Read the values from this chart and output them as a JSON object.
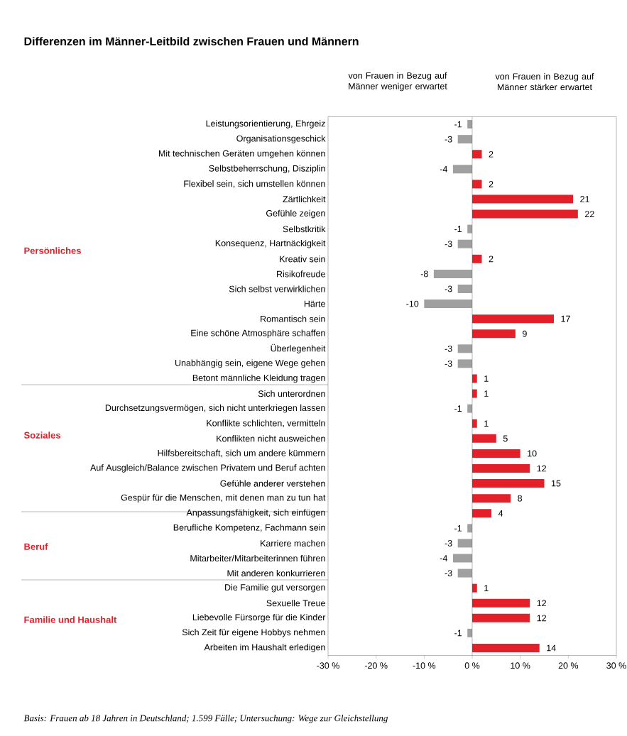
{
  "chart_data": {
    "type": "bar",
    "orientation": "horizontal",
    "title": "Differenzen im Männer-Leitbild zwischen Frauen und Männern",
    "categories": [
      "Leistungsorientierung, Ehrgeiz",
      "Organisationsgeschick",
      "Mit technischen Geräten umgehen können",
      "Selbstbeherrschung, Disziplin",
      "Flexibel sein, sich umstellen können",
      "Zärtlichkeit",
      "Gefühle zeigen",
      "Selbstkritik",
      "Konsequenz, Hartnäckigkeit",
      "Kreativ sein",
      "Risikofreude",
      "Sich selbst verwirklichen",
      "Härte",
      "Romantisch sein",
      "Eine schöne Atmosphäre schaffen",
      "Überlegenheit",
      "Unabhängig sein, eigene Wege gehen",
      "Betont männliche Kleidung tragen",
      "Sich unterordnen",
      "Durchsetzungsvermögen, sich nicht unterkriegen lassen",
      "Konflikte schlichten, vermitteln",
      "Konflikten nicht ausweichen",
      "Hilfsbereitschaft, sich um andere kümmern",
      "Auf Ausgleich/Balance zwischen Privatem und Beruf achten",
      "Gefühle anderer verstehen",
      "Gespür für die Menschen, mit denen man zu tun hat",
      "Anpassungsfähigkeit, sich einfügen",
      "Berufliche Kompetenz, Fachmann sein",
      "Karriere machen",
      "Mitarbeiter/Mitarbeiterinnen führen",
      "Mit anderen konkurrieren",
      "Die Familie gut versorgen",
      "Sexuelle Treue",
      "Liebevolle Fürsorge für die Kinder",
      "Sich Zeit für eigene Hobbys nehmen",
      "Arbeiten im Haushalt erledigen"
    ],
    "values": [
      -1,
      -3,
      2,
      -4,
      2,
      21,
      22,
      -1,
      -3,
      2,
      -8,
      -3,
      -10,
      17,
      9,
      -3,
      -3,
      1,
      1,
      -1,
      1,
      5,
      10,
      12,
      15,
      8,
      4,
      -1,
      -3,
      -4,
      -3,
      1,
      12,
      12,
      -1,
      14
    ],
    "colors": [
      "#a0a0a0",
      "#a0a0a0",
      "#e3202a",
      "#a0a0a0",
      "#e3202a",
      "#e3202a",
      "#e3202a",
      "#a0a0a0",
      "#a0a0a0",
      "#e3202a",
      "#a0a0a0",
      "#a0a0a0",
      "#a0a0a0",
      "#e3202a",
      "#e3202a",
      "#a0a0a0",
      "#a0a0a0",
      "#e3202a",
      "#e3202a",
      "#a0a0a0",
      "#e3202a",
      "#e3202a",
      "#e3202a",
      "#e3202a",
      "#e3202a",
      "#e3202a",
      "#e3202a",
      "#a0a0a0",
      "#a0a0a0",
      "#a0a0a0",
      "#a0a0a0",
      "#e3202a",
      "#e3202a",
      "#e3202a",
      "#a0a0a0",
      "#e3202a"
    ],
    "data_labels": true,
    "xlim": [
      -30,
      30
    ],
    "xticks": [
      {
        "value": -30,
        "label": "-30 %"
      },
      {
        "value": -20,
        "label": "-20 %"
      },
      {
        "value": -10,
        "label": "-10 %"
      },
      {
        "value": 0,
        "label": "0 %"
      },
      {
        "value": 10,
        "label": "10 %"
      },
      {
        "value": 20,
        "label": "20 %"
      },
      {
        "value": 30,
        "label": "30 %"
      }
    ],
    "annotations": [
      "von Frauen in Bezug auf Männer weniger erwartet",
      "von Frauen in Bezug auf Männer stärker erwartet",
      "Persönliches",
      "Soziales",
      "Beruf",
      "Familie und Haushalt",
      "Basis: Frauen ab 18 Jahren in Deutschland; 1.599 Fälle; Untersuchung: Wege zur Gleichstellung"
    ]
  }
}
